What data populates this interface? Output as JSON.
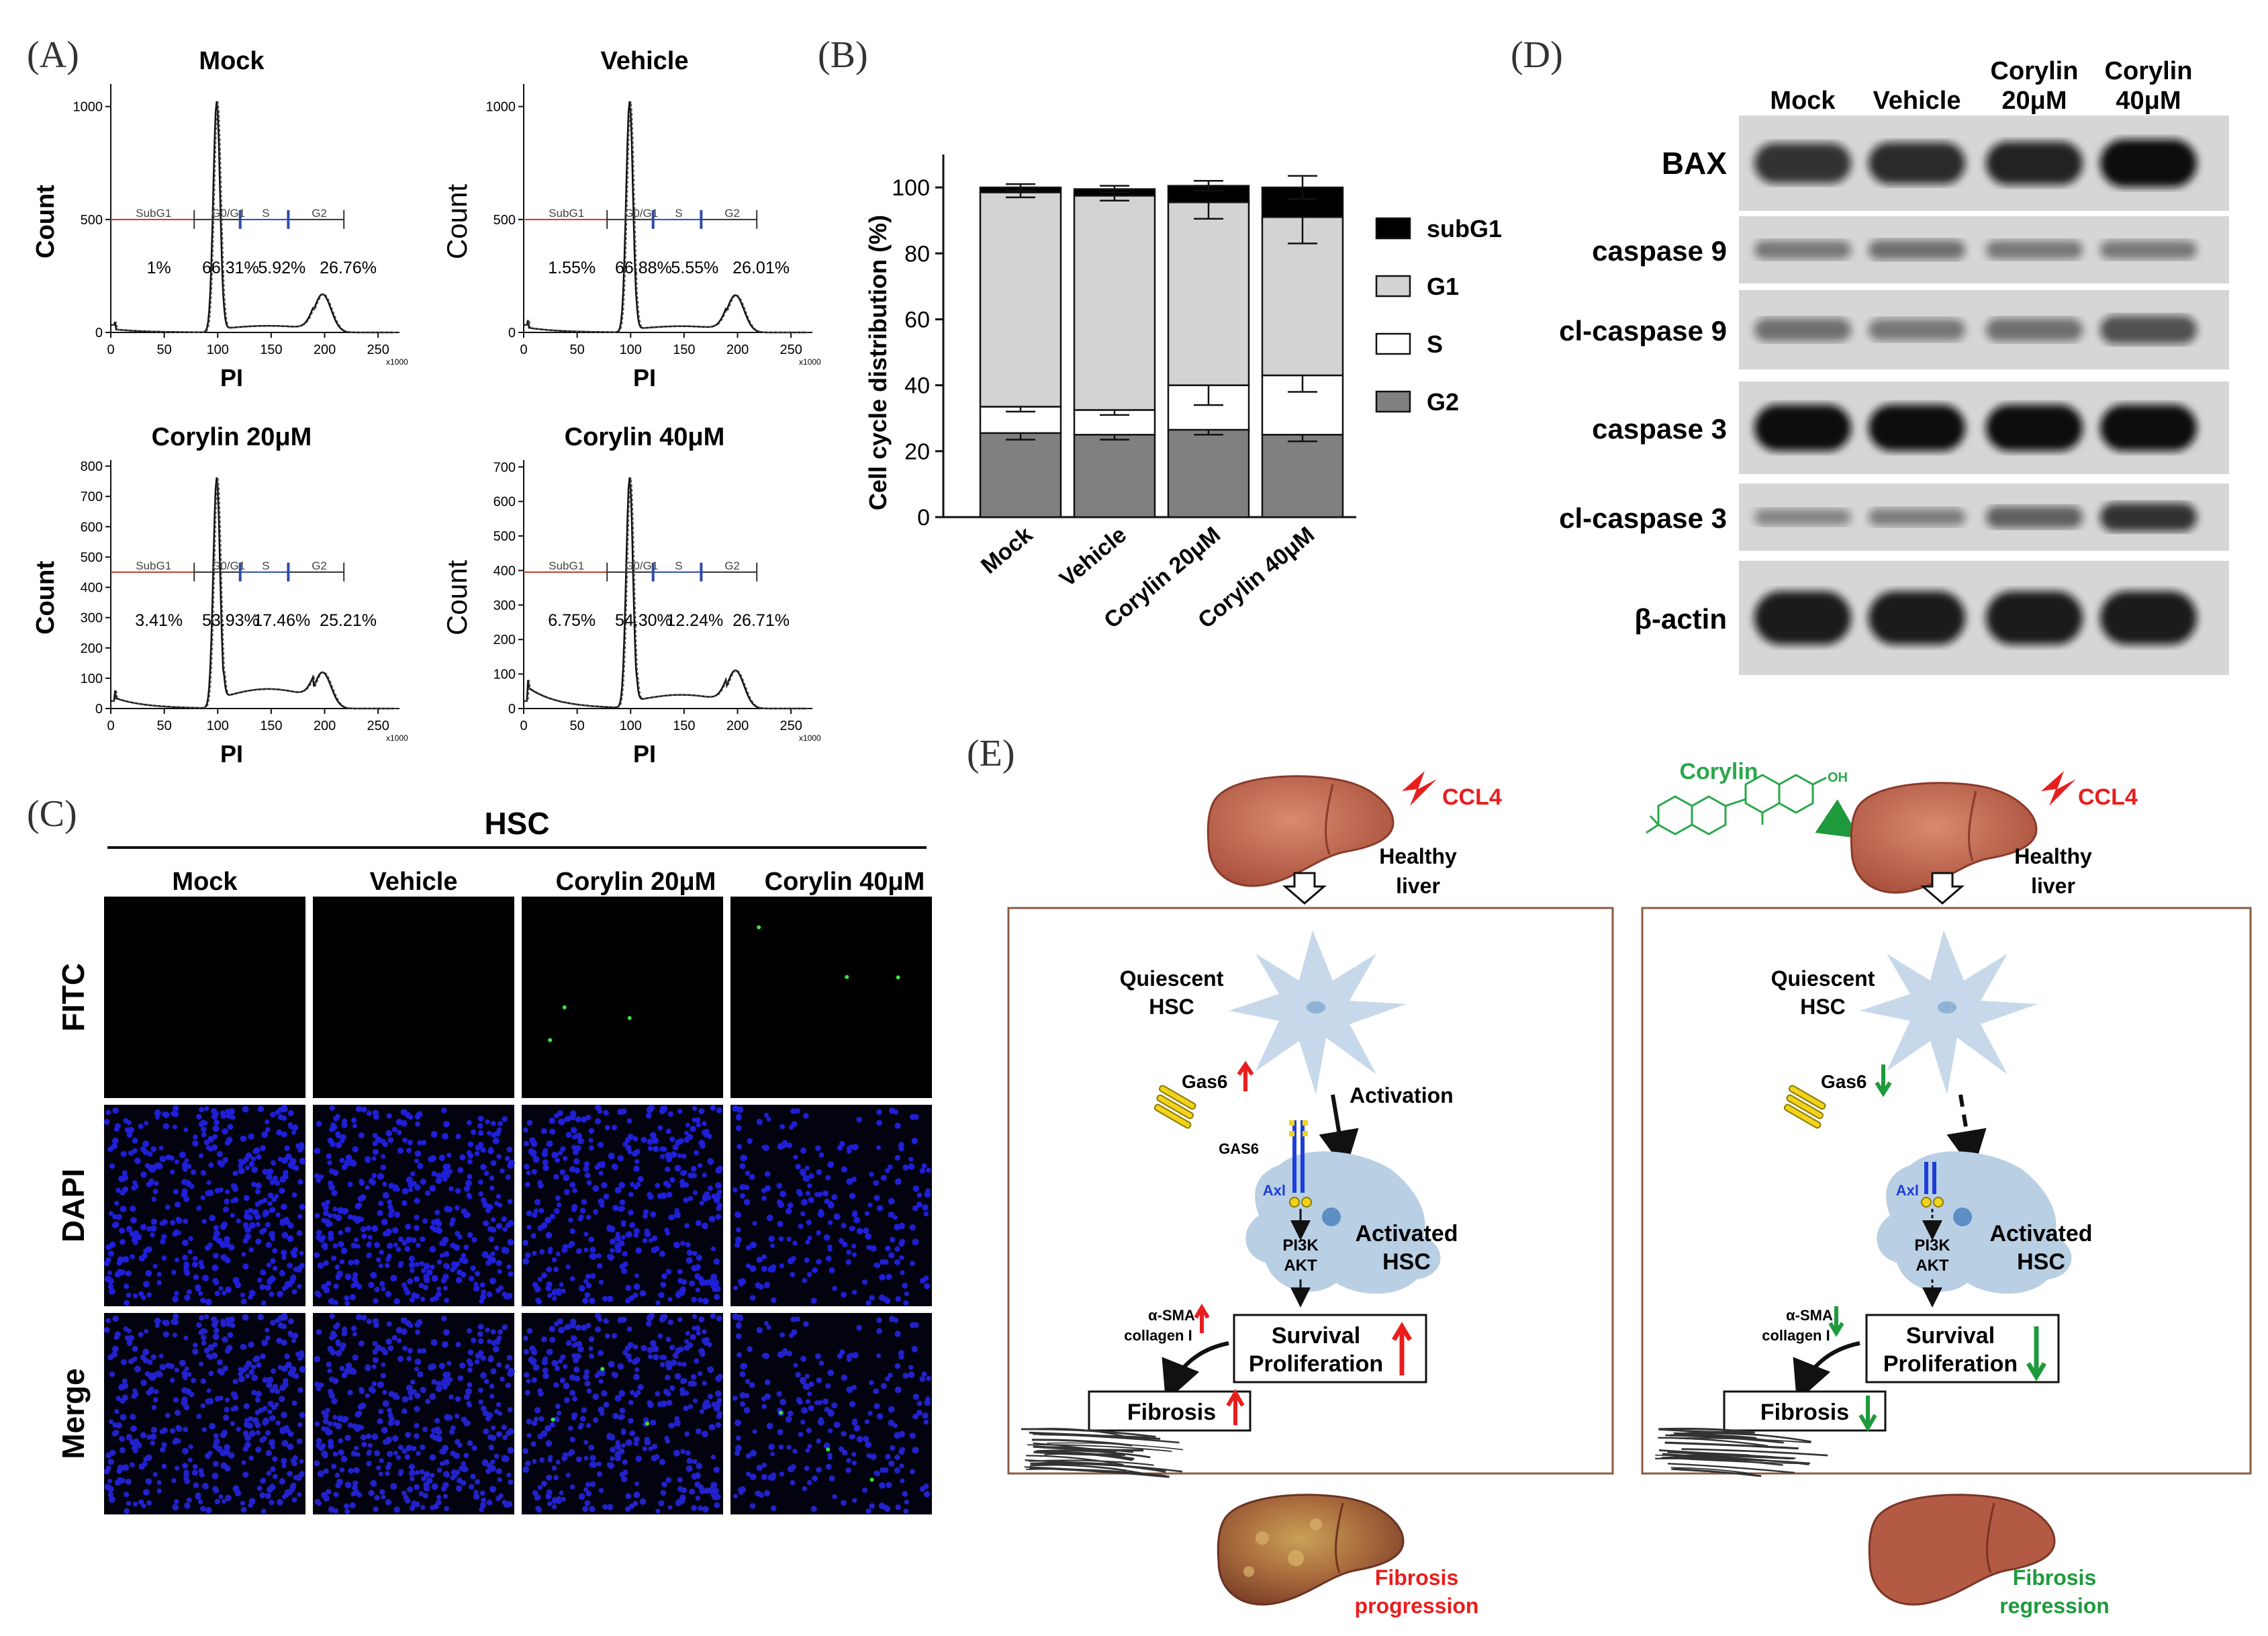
{
  "panel_letters": {
    "A": "(A)",
    "B": "(B)",
    "C": "(C)",
    "D": "(D)",
    "E": "(E)"
  },
  "panel_a": {
    "ylabel": "Count",
    "xlabel": "PI",
    "x_multiplier": "x1000",
    "x_ticks": [
      "0",
      "50",
      "100",
      "150",
      "200",
      "250"
    ],
    "gates": [
      "SubG1",
      "G0/G1",
      "S",
      "G2"
    ],
    "histograms": [
      {
        "title": "Mock",
        "y_ticks": [
          "0",
          "500",
          "1000"
        ],
        "ymax": 1100,
        "percents": [
          "1%",
          "66.31%",
          "5.92%",
          "26.76%"
        ]
      },
      {
        "title": "Vehicle",
        "y_ticks": [
          "0",
          "500",
          "1000"
        ],
        "ymax": 1100,
        "percents": [
          "1.55%",
          "66.88%",
          "5.55%",
          "26.01%"
        ]
      },
      {
        "title": "Corylin 20μM",
        "y_ticks": [
          "0",
          "100",
          "200",
          "300",
          "400",
          "500",
          "600",
          "700",
          "800"
        ],
        "ymax": 820,
        "percents": [
          "3.41%",
          "53.93%",
          "17.46%",
          "25.21%"
        ]
      },
      {
        "title": "Corylin 40μM",
        "y_ticks": [
          "0",
          "100",
          "200",
          "300",
          "400",
          "500",
          "600",
          "700"
        ],
        "ymax": 720,
        "percents": [
          "6.75%",
          "54.30%",
          "12.24%",
          "26.71%"
        ]
      }
    ]
  },
  "chart_data": {
    "type": "bar",
    "stacked": true,
    "categories": [
      "Mock",
      "Vehicle",
      "Corylin 20μM",
      "Corylin 40μM"
    ],
    "ylabel": "Cell cycle distribution (%)",
    "ylim": [
      0,
      110
    ],
    "y_ticks": [
      0,
      20,
      40,
      60,
      80,
      100
    ],
    "legend_position": "right",
    "series": [
      {
        "name": "G2",
        "values": [
          25.5,
          25,
          26.5,
          25
        ],
        "errors": [
          2,
          1.5,
          1.5,
          2
        ],
        "color": "#808080"
      },
      {
        "name": "S",
        "values": [
          8,
          7.5,
          13.5,
          18
        ],
        "errors": [
          1.5,
          1.5,
          6,
          5
        ],
        "color": "#ffffff"
      },
      {
        "name": "G1",
        "values": [
          65,
          65,
          55.5,
          48
        ],
        "errors": [
          1.5,
          1.5,
          5,
          8
        ],
        "color": "#d3d3d3"
      },
      {
        "name": "subG1",
        "values": [
          1.5,
          2,
          5,
          9
        ],
        "errors": [
          1,
          1,
          1.5,
          3.5
        ],
        "color": "#000000"
      }
    ],
    "legend_order": [
      "subG1",
      "G1",
      "S",
      "G2"
    ]
  },
  "panel_c": {
    "title": "HSC",
    "columns": [
      "Mock",
      "Vehicle",
      "Corylin 20μM",
      "Corylin 40μM"
    ],
    "rows": [
      "FITC",
      "DAPI",
      "Merge"
    ]
  },
  "panel_d": {
    "columns": [
      "Mock",
      "Vehicle",
      "Corylin 20μM",
      "Corylin 40μM"
    ],
    "bands": [
      {
        "label": "BAX",
        "intensity": [
          0.75,
          0.8,
          0.85,
          1.0
        ]
      },
      {
        "label": "caspase 9",
        "intensity": [
          0.3,
          0.35,
          0.3,
          0.3
        ]
      },
      {
        "label": "cl-caspase 9",
        "intensity": [
          0.35,
          0.3,
          0.35,
          0.55
        ]
      },
      {
        "label": "caspase 3",
        "intensity": [
          1.0,
          1.0,
          1.0,
          1.0
        ]
      },
      {
        "label": "cl-caspase 3",
        "intensity": [
          0.2,
          0.25,
          0.45,
          0.75
        ]
      },
      {
        "label": "β-actin",
        "intensity": [
          0.9,
          0.9,
          0.9,
          0.9
        ]
      }
    ]
  },
  "panel_e": {
    "left": {
      "ccl4": "CCL4",
      "healthy_liver": [
        "Healthy",
        "liver"
      ],
      "quiescent": [
        "Quiescent",
        "HSC"
      ],
      "gas6": "Gas6",
      "activation": "Activation",
      "GAS6": "GAS6",
      "axl": "Axl",
      "pi3k": "PI3K",
      "akt": "AKT",
      "activated": [
        "Activated",
        "HSC"
      ],
      "asma": "α-SMA",
      "collagen": "collagen I",
      "survival": [
        "Survival",
        "Proliferation"
      ],
      "fibrosis": "Fibrosis",
      "outcome": [
        "Fibrosis",
        "progression"
      ]
    },
    "right": {
      "corylin": "Corylin",
      "oh": "OH",
      "ccl4": "CCL4",
      "healthy_liver": [
        "Healthy",
        "liver"
      ],
      "quiescent": [
        "Quiescent",
        "HSC"
      ],
      "gas6": "Gas6",
      "axl": "Axl",
      "pi3k": "PI3K",
      "akt": "AKT",
      "activated": [
        "Activated",
        "HSC"
      ],
      "asma": "α-SMA",
      "collagen": "collagen I",
      "survival": [
        "Survival",
        "Proliferation"
      ],
      "fibrosis": "Fibrosis",
      "outcome": [
        "Fibrosis",
        "regression"
      ]
    },
    "colors": {
      "up": "#e81e1e",
      "down": "#1e9a3c",
      "corylin": "#2aa84a",
      "axl": "#1d3fd8",
      "cell": "#b9cfe4",
      "liver": "#c06a55"
    }
  }
}
